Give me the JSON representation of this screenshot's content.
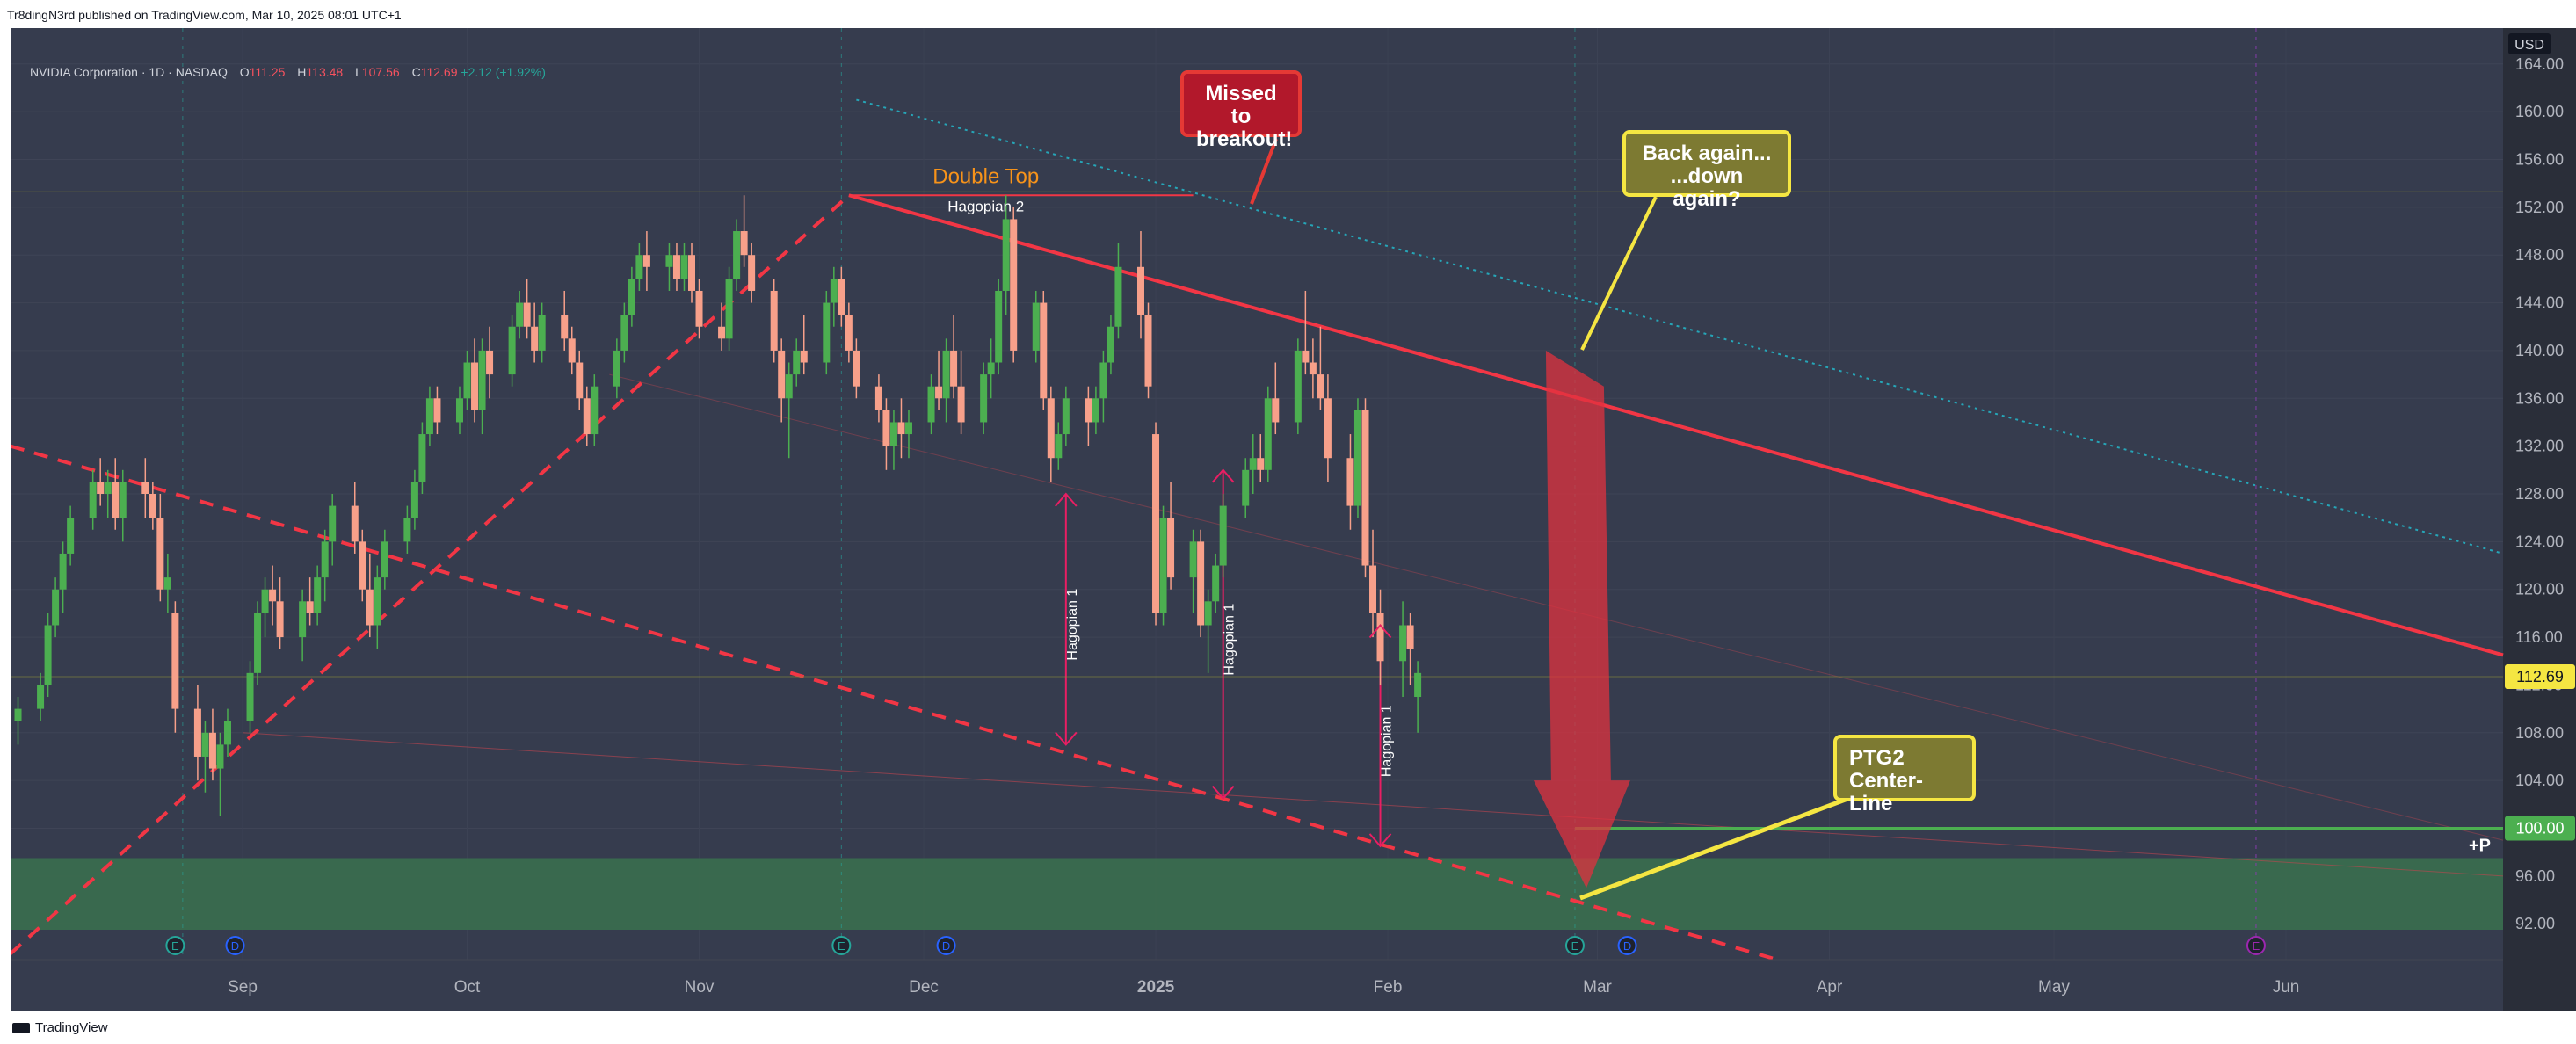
{
  "header": {
    "published": "Tr8dingN3rd published on TradingView.com, Mar 10, 2025 08:01 UTC+1"
  },
  "legend": {
    "symbol": "NVIDIA Corporation · 1D · NASDAQ",
    "o_label": "O",
    "o_value": "111.25",
    "h_label": "H",
    "h_value": "113.48",
    "l_label": "L",
    "l_value": "107.56",
    "c_label": "C",
    "c_value": "112.69",
    "change": "+2.12 (+1.92%)"
  },
  "currency": "USD",
  "footer": {
    "brand": "TradingView"
  },
  "colors": {
    "background": "#363c4e",
    "up": "#4caf50",
    "down": "#f7a08a",
    "red_line": "#f23645",
    "zone": "#3a6b4e",
    "yellow": "#f5e642",
    "green_line": "#4caf50",
    "price_tag": "#f5e642",
    "cyan_dotted": "#26a6b8"
  },
  "annotations": {
    "double_top": "Double Top",
    "hagopian2": "Hagopian 2",
    "hagopian1": "Hagopian 1",
    "missed": [
      "Missed to",
      "breakout!"
    ],
    "back": [
      "Back again...",
      "...down again?"
    ],
    "ptg2": [
      "PTG2",
      "Center-Line"
    ],
    "plus_p": "+P"
  },
  "chart_data": {
    "type": "candlestick",
    "title": "NVIDIA Corporation · 1D · NASDAQ",
    "ylim": [
      89,
      167
    ],
    "y_ticks": [
      92,
      96,
      100,
      104,
      108,
      112,
      116,
      120,
      124,
      128,
      132,
      136,
      140,
      144,
      148,
      152,
      156,
      160,
      164
    ],
    "y_tick_labels": [
      "92.00",
      "96.00",
      "100.00",
      "104.00",
      "108.00",
      "112.00",
      "116.00",
      "120.00",
      "124.00",
      "128.00",
      "132.00",
      "136.00",
      "140.00",
      "144.00",
      "148.00",
      "152.00",
      "156.00",
      "160.00",
      "164.00"
    ],
    "x_ticks": [
      {
        "label": "Sep",
        "date": "2024-09-01"
      },
      {
        "label": "Oct",
        "date": "2024-10-01"
      },
      {
        "label": "Nov",
        "date": "2024-11-01"
      },
      {
        "label": "Dec",
        "date": "2024-12-01"
      },
      {
        "label": "2025",
        "date": "2025-01-01"
      },
      {
        "label": "Feb",
        "date": "2025-02-01"
      },
      {
        "label": "Mar",
        "date": "2025-03-01"
      },
      {
        "label": "Apr",
        "date": "2025-04-01"
      },
      {
        "label": "May",
        "date": "2025-05-01"
      },
      {
        "label": "Jun",
        "date": "2025-06-01"
      }
    ],
    "last_price": 112.69,
    "last_price_label": "112.69",
    "target_price": 100.0,
    "target_price_label": "100.00",
    "candles": [
      [
        109,
        111,
        107,
        110
      ],
      [
        110,
        113,
        109,
        112
      ],
      [
        112,
        118,
        111,
        117
      ],
      [
        117,
        121,
        116,
        120
      ],
      [
        120,
        124,
        118,
        123
      ],
      [
        123,
        127,
        122,
        126
      ],
      [
        126,
        130,
        125,
        129
      ],
      [
        129,
        131,
        127,
        128
      ],
      [
        128,
        130,
        126,
        129
      ],
      [
        129,
        131,
        125,
        126
      ],
      [
        126,
        130,
        124,
        129
      ],
      [
        129,
        131,
        126,
        128
      ],
      [
        128,
        129,
        125,
        126
      ],
      [
        126,
        128,
        119,
        120
      ],
      [
        120,
        123,
        118,
        121
      ],
      [
        118,
        119,
        108,
        110
      ],
      [
        110,
        112,
        104,
        106
      ],
      [
        106,
        109,
        103,
        108
      ],
      [
        108,
        110,
        104,
        105
      ],
      [
        105,
        108,
        101,
        107
      ],
      [
        107,
        110,
        106,
        109
      ],
      [
        109,
        114,
        108,
        113
      ],
      [
        113,
        119,
        112,
        118
      ],
      [
        118,
        121,
        116,
        120
      ],
      [
        120,
        122,
        117,
        119
      ],
      [
        119,
        121,
        115,
        116
      ],
      [
        116,
        120,
        114,
        119
      ],
      [
        119,
        121,
        117,
        118
      ],
      [
        118,
        122,
        117,
        121
      ],
      [
        121,
        125,
        119,
        124
      ],
      [
        124,
        128,
        122,
        127
      ],
      [
        127,
        129,
        123,
        124
      ],
      [
        124,
        125,
        119,
        120
      ],
      [
        120,
        123,
        116,
        117
      ],
      [
        117,
        122,
        115,
        121
      ],
      [
        121,
        125,
        120,
        124
      ],
      [
        124,
        127,
        123,
        126
      ],
      [
        126,
        130,
        125,
        129
      ],
      [
        129,
        134,
        128,
        133
      ],
      [
        133,
        137,
        132,
        136
      ],
      [
        136,
        137,
        133,
        134
      ],
      [
        134,
        137,
        133,
        136
      ],
      [
        136,
        140,
        135,
        139
      ],
      [
        139,
        141,
        134,
        135
      ],
      [
        135,
        141,
        133,
        140
      ],
      [
        140,
        142,
        136,
        138
      ],
      [
        138,
        143,
        137,
        142
      ],
      [
        142,
        145,
        141,
        144
      ],
      [
        144,
        146,
        141,
        142
      ],
      [
        142,
        144,
        139,
        140
      ],
      [
        140,
        144,
        139,
        143
      ],
      [
        143,
        145,
        140,
        141
      ],
      [
        141,
        142,
        138,
        139
      ],
      [
        139,
        140,
        135,
        136
      ],
      [
        136,
        137,
        132,
        133
      ],
      [
        133,
        138,
        132,
        137
      ],
      [
        137,
        141,
        136,
        140
      ],
      [
        140,
        144,
        139,
        143
      ],
      [
        143,
        147,
        142,
        146
      ],
      [
        146,
        149,
        145,
        148
      ],
      [
        148,
        150,
        145,
        147
      ],
      [
        147,
        149,
        145,
        148
      ],
      [
        148,
        149,
        145,
        146
      ],
      [
        146,
        149,
        145,
        148
      ],
      [
        148,
        149,
        144,
        145
      ],
      [
        145,
        146,
        141,
        142
      ],
      [
        142,
        144,
        140,
        141
      ],
      [
        141,
        147,
        140,
        146
      ],
      [
        146,
        151,
        145,
        150
      ],
      [
        150,
        153,
        147,
        148
      ],
      [
        148,
        149,
        144,
        145
      ],
      [
        145,
        146,
        139,
        140
      ],
      [
        140,
        141,
        134,
        136
      ],
      [
        136,
        139,
        131,
        138
      ],
      [
        138,
        141,
        137,
        140
      ],
      [
        140,
        143,
        138,
        139
      ],
      [
        139,
        145,
        138,
        144
      ],
      [
        144,
        147,
        142,
        146
      ],
      [
        146,
        147,
        142,
        143
      ],
      [
        143,
        144,
        139,
        140
      ],
      [
        140,
        141,
        136,
        137
      ],
      [
        137,
        138,
        134,
        135
      ],
      [
        135,
        136,
        130,
        132
      ],
      [
        132,
        135,
        130,
        134
      ],
      [
        134,
        136,
        131,
        133
      ],
      [
        133,
        135,
        131,
        134
      ],
      [
        134,
        138,
        133,
        137
      ],
      [
        137,
        140,
        135,
        136
      ],
      [
        136,
        141,
        134,
        140
      ],
      [
        140,
        143,
        136,
        137
      ],
      [
        137,
        140,
        133,
        134
      ],
      [
        134,
        139,
        133,
        138
      ],
      [
        138,
        141,
        136,
        139
      ],
      [
        139,
        146,
        138,
        145
      ],
      [
        145,
        153,
        143,
        151
      ],
      [
        151,
        152,
        139,
        140
      ],
      [
        140,
        145,
        139,
        144
      ],
      [
        144,
        145,
        135,
        136
      ],
      [
        136,
        137,
        129,
        131
      ],
      [
        131,
        134,
        130,
        133
      ],
      [
        133,
        137,
        132,
        136
      ],
      [
        136,
        137,
        132,
        134
      ],
      [
        134,
        137,
        133,
        136
      ],
      [
        136,
        140,
        134,
        139
      ],
      [
        139,
        143,
        138,
        142
      ],
      [
        142,
        149,
        141,
        147
      ],
      [
        147,
        150,
        141,
        143
      ],
      [
        143,
        144,
        136,
        137
      ],
      [
        133,
        134,
        117,
        118
      ],
      [
        118,
        127,
        117,
        126
      ],
      [
        126,
        129,
        120,
        121
      ],
      [
        121,
        125,
        118,
        124
      ],
      [
        124,
        125,
        116,
        117
      ],
      [
        117,
        120,
        113,
        119
      ],
      [
        119,
        123,
        118,
        122
      ],
      [
        122,
        128,
        121,
        127
      ],
      [
        127,
        131,
        126,
        130
      ],
      [
        130,
        133,
        128,
        131
      ],
      [
        131,
        133,
        129,
        130
      ],
      [
        130,
        137,
        129,
        136
      ],
      [
        136,
        139,
        133,
        134
      ],
      [
        134,
        141,
        133,
        140
      ],
      [
        140,
        145,
        138,
        139
      ],
      [
        139,
        141,
        136,
        138
      ],
      [
        138,
        142,
        135,
        136
      ],
      [
        136,
        138,
        129,
        131
      ],
      [
        131,
        133,
        125,
        127
      ],
      [
        127,
        136,
        126,
        135
      ],
      [
        135,
        136,
        121,
        122
      ],
      [
        122,
        125,
        116,
        118
      ],
      [
        118,
        120,
        112,
        114
      ],
      [
        114,
        119,
        111,
        117
      ],
      [
        117,
        118,
        112,
        115
      ],
      [
        111,
        114,
        108,
        113
      ]
    ]
  }
}
